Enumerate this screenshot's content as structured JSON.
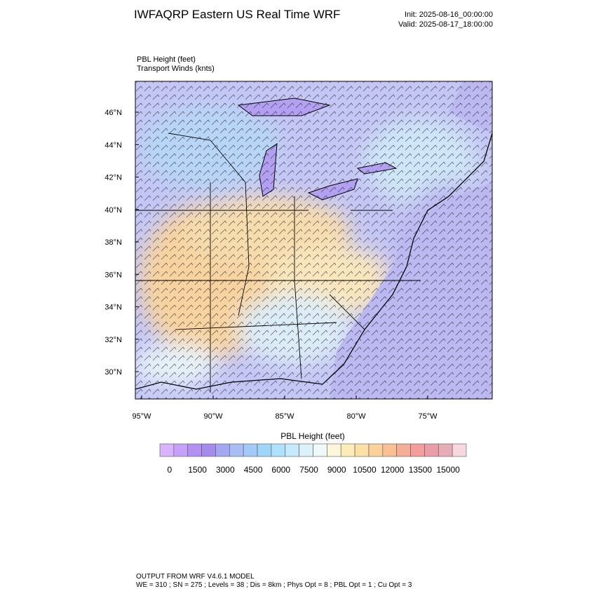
{
  "header": {
    "title": "IWFAQRP Eastern US Real Time WRF",
    "init": "Init: 2025-08-16_00:00:00",
    "valid": "Valid: 2025-08-17_18:00:00"
  },
  "fields": [
    "PBL Height   (feet)",
    "Transport Winds   (knts)"
  ],
  "map": {
    "lat_labels": [
      "46°N",
      "44°N",
      "42°N",
      "40°N",
      "38°N",
      "36°N",
      "34°N",
      "32°N",
      "30°N"
    ],
    "lon_labels": [
      "95°W",
      "90°W",
      "85°W",
      "80°W",
      "75°W"
    ]
  },
  "colorbar": {
    "title": "PBL Height  (feet)",
    "colors": [
      "#d9b3ff",
      "#c6a0fb",
      "#b490f2",
      "#a48ceb",
      "#a3a6f1",
      "#a9bdf5",
      "#a2c9f8",
      "#a0d5fa",
      "#aee1fb",
      "#c4eafb",
      "#dcf2fb",
      "#f0f8fb",
      "#fcf6dc",
      "#fcedb8",
      "#fbe1a6",
      "#fad19a",
      "#f8c093",
      "#f6ad95",
      "#f39d9d",
      "#ea9da7",
      "#e6acb8",
      "#f6d8de"
    ],
    "labels": [
      "0",
      "1500",
      "3000",
      "4500",
      "6000",
      "7500",
      "9000",
      "10500",
      "12000",
      "13500",
      "15000"
    ]
  },
  "footer": [
    "OUTPUT FROM WRF V4.6.1 MODEL",
    "WE = 310 ; SN = 275 ; Levels = 38 ; Dis = 8km ; Phys Opt = 8 ; PBL Opt = 1 ; Cu Opt = 3"
  ]
}
